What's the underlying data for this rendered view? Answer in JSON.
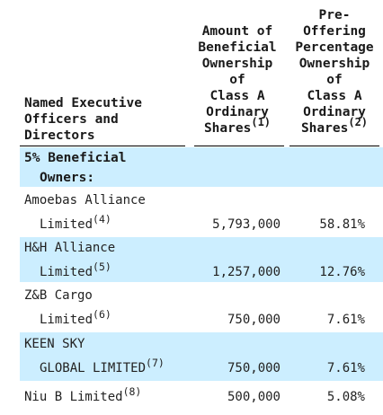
{
  "header": {
    "name_col": [
      "Named Executive",
      "Officers and",
      "Directors"
    ],
    "amount_col": [
      "Amount of",
      "Beneficial",
      "Ownership",
      "of",
      "Class A",
      "Ordinary"
    ],
    "amount_last": "Shares",
    "amount_note": "(1)",
    "pct_col": [
      "Pre-",
      "Offering",
      "Percentage",
      "Ownership",
      "of",
      "Class A",
      "Ordinary"
    ],
    "pct_last": "Shares",
    "pct_note": "(2)"
  },
  "section": {
    "line1": "5% Beneficial",
    "line2": "Owners:"
  },
  "rows": [
    {
      "line1": "Amoebas Alliance",
      "line2": "Limited",
      "note": "(4)",
      "shares": "5,793,000",
      "pct": "58.81%"
    },
    {
      "line1": "H&H Alliance",
      "line2": "Limited",
      "note": "(5)",
      "shares": "1,257,000",
      "pct": "12.76%"
    },
    {
      "line1": "Z&B Cargo",
      "line2": "Limited",
      "note": "(6)",
      "shares": "750,000",
      "pct": "7.61%"
    },
    {
      "line1": "KEEN SKY",
      "line2": "GLOBAL LIMITED",
      "note": "(7)",
      "shares": "750,000",
      "pct": "7.61%"
    },
    {
      "line1": "Niu B Limited",
      "note": "(8)",
      "shares": "500,000",
      "pct": "5.08%"
    }
  ],
  "colors": {
    "band": "#cceeff",
    "rule": "#000000"
  }
}
